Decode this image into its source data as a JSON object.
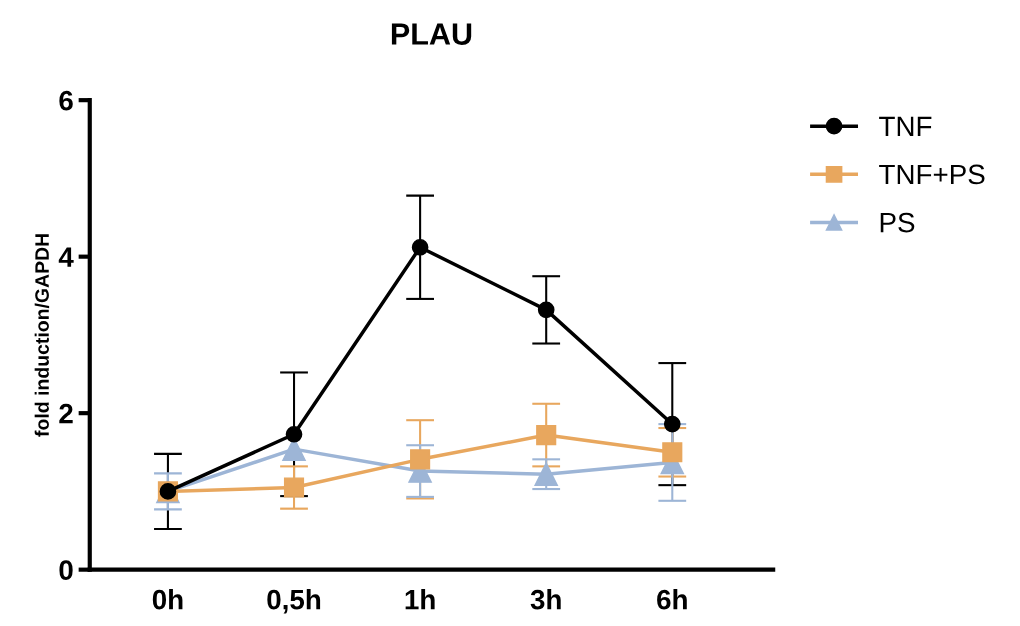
{
  "chart_data": {
    "type": "line",
    "title": "PLAU",
    "ylabel": "fold induction/GAPDH",
    "categories": [
      "0h",
      "0,5h",
      "1h",
      "3h",
      "6h"
    ],
    "series": [
      {
        "name": "TNF",
        "color": "#000000",
        "marker": "circle",
        "values": [
          1.0,
          1.73,
          4.12,
          3.32,
          1.86
        ],
        "errors": [
          0.48,
          0.79,
          0.66,
          0.43,
          0.78
        ]
      },
      {
        "name": "TNF+PS",
        "color": "#e8a75e",
        "marker": "square",
        "values": [
          1.0,
          1.05,
          1.41,
          1.72,
          1.5
        ],
        "errors": [
          null,
          0.27,
          0.5,
          0.4,
          0.31
        ]
      },
      {
        "name": "PS",
        "color": "#9db5d6",
        "marker": "triangle",
        "values": [
          1.0,
          1.54,
          1.26,
          1.22,
          1.37
        ],
        "errors": [
          0.23,
          null,
          0.33,
          0.19,
          0.49
        ]
      }
    ],
    "ylim": [
      0,
      6
    ],
    "yticks": [
      0,
      2,
      4,
      6
    ],
    "grid": false,
    "legend": "right",
    "line_style": "solid"
  }
}
